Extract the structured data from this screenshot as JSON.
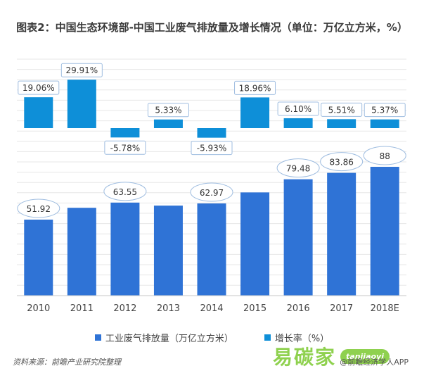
{
  "title": "图表2：中国生态环境部-中国工业废气排放量及增长情况（单位：万亿立方米，%）",
  "chart_data": {
    "type": "bar",
    "categories": [
      "2010",
      "2011",
      "2012",
      "2013",
      "2014",
      "2015",
      "2016",
      "2017",
      "2018E"
    ],
    "series": [
      {
        "name": "工业废气排放量（万亿立方米）",
        "values": [
          51.92,
          60.0,
          63.55,
          61.5,
          62.97,
          70.5,
          79.48,
          83.86,
          88
        ],
        "labels": [
          "51.92",
          "",
          "63.55",
          "",
          "62.97",
          "",
          "79.48",
          "83.86",
          "88"
        ],
        "color": "#2f73d6"
      },
      {
        "name": "增长率（%）",
        "values": [
          19.06,
          29.91,
          -5.78,
          5.33,
          -5.93,
          18.96,
          6.1,
          5.51,
          5.37
        ],
        "labels": [
          "19.06%",
          "29.91%",
          "-5.78%",
          "5.33%",
          "-5.93%",
          "18.96%",
          "6.10%",
          "5.51%",
          "5.37%"
        ],
        "color": "#0e8fd8"
      }
    ],
    "ylim_volume": [
      0,
      100
    ],
    "ylim_growth": [
      -10,
      40
    ],
    "grid": true,
    "legend": "bottom"
  },
  "footer": {
    "source": "资料来源：前瞻产业研究院整理",
    "credit": "@前瞻经济学人APP"
  },
  "watermark": {
    "text": "易碳家",
    "badge": "tanjiaoyi"
  }
}
